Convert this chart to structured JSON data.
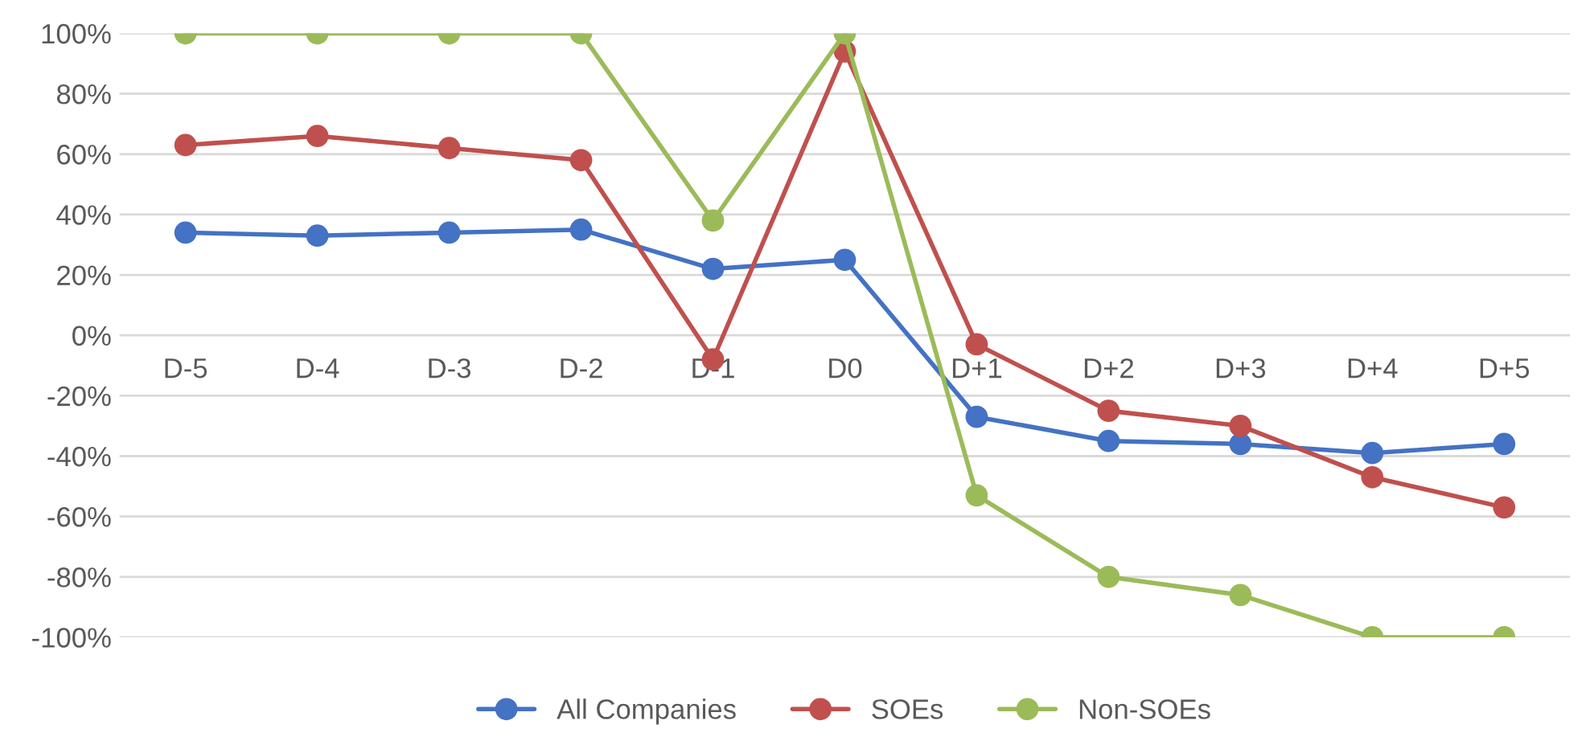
{
  "chart_data": {
    "type": "line",
    "categories": [
      "D-5",
      "D-4",
      "D-3",
      "D-2",
      "D-1",
      "D0",
      "D+1",
      "D+2",
      "D+3",
      "D+4",
      "D+5"
    ],
    "series": [
      {
        "name": "All Companies",
        "color": "#4472c4",
        "values": [
          34,
          33,
          34,
          35,
          22,
          25,
          -27,
          -35,
          -36,
          -39,
          -36
        ]
      },
      {
        "name": "SOEs",
        "color": "#c0504d",
        "values": [
          63,
          66,
          62,
          58,
          -8,
          94,
          -3,
          -25,
          -30,
          -47,
          -57
        ]
      },
      {
        "name": "Non-SOEs",
        "color": "#9bbb59",
        "values": [
          100,
          100,
          100,
          100,
          38,
          100,
          -53,
          -80,
          -86,
          -100,
          -100
        ]
      }
    ],
    "ylim": [
      -100,
      100
    ],
    "yticks": [
      {
        "value": -100,
        "label": "-100%"
      },
      {
        "value": -80,
        "label": "-80%"
      },
      {
        "value": -60,
        "label": "-60%"
      },
      {
        "value": -40,
        "label": "-40%"
      },
      {
        "value": -20,
        "label": "-20%"
      },
      {
        "value": 0,
        "label": "0%"
      },
      {
        "value": 20,
        "label": "20%"
      },
      {
        "value": 40,
        "label": "40%"
      },
      {
        "value": 60,
        "label": "60%"
      },
      {
        "value": 80,
        "label": "80%"
      },
      {
        "value": 100,
        "label": "100%"
      }
    ],
    "grid": "y",
    "legend": "bottom",
    "marker": "circle",
    "line_style": "solid"
  }
}
